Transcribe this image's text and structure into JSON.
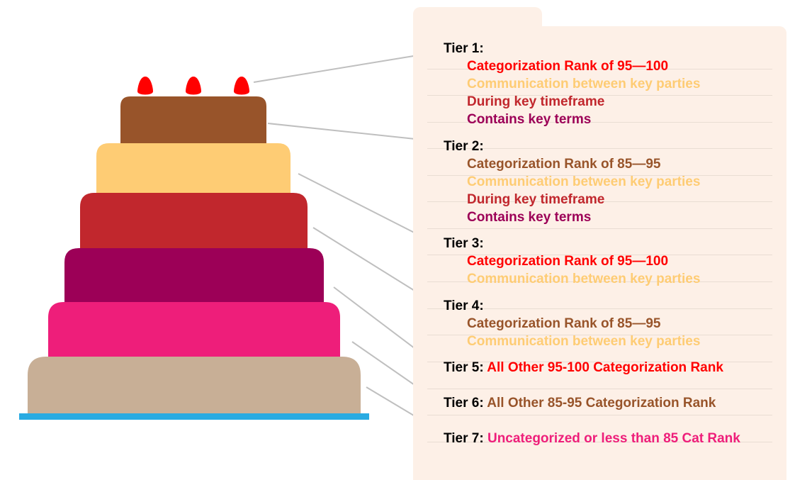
{
  "colors": {
    "candle": "#ff0000",
    "layer1": "#98542a",
    "layer2": "#fecc74",
    "layer3": "#c1272d",
    "layer4": "#9c0057",
    "layer5": "#ee1e7a",
    "layer6": "#c8af96",
    "base": "#29abe2",
    "connector": "#bfbfbf",
    "panel": "#fdf0e7"
  },
  "tiers": [
    {
      "label": "Tier 1:",
      "items": [
        {
          "text": "Categorization Rank of 95—100",
          "color": "#ff0000"
        },
        {
          "text": "Communication between key parties",
          "color": "#fecc74"
        },
        {
          "text": "During key timeframe",
          "color": "#c1272d"
        },
        {
          "text": "Contains key terms",
          "color": "#9c0057"
        }
      ]
    },
    {
      "label": "Tier 2:",
      "items": [
        {
          "text": "Categorization Rank of 85—95",
          "color": "#98542a"
        },
        {
          "text": "Communication between key parties",
          "color": "#fecc74"
        },
        {
          "text": "During key timeframe",
          "color": "#c1272d"
        },
        {
          "text": "Contains key terms",
          "color": "#9c0057"
        }
      ]
    },
    {
      "label": "Tier 3:",
      "items": [
        {
          "text": "Categorization Rank of 95—100",
          "color": "#ff0000"
        },
        {
          "text": "Communication between key parties",
          "color": "#fecc74"
        }
      ]
    },
    {
      "label": "Tier 4:",
      "items": [
        {
          "text": "Categorization Rank of 85—95",
          "color": "#98542a"
        },
        {
          "text": "Communication between key parties",
          "color": "#fecc74"
        }
      ]
    },
    {
      "label": "Tier 5:",
      "inline": "All Other 95-100 Categorization Rank",
      "color": "#ff0000"
    },
    {
      "label": "Tier 6:",
      "inline": " All Other 85-95 Categorization Rank",
      "color": "#98542a"
    },
    {
      "label": "Tier 7:",
      "inline": "Uncategorized or less than 85 Cat Rank",
      "color": "#ee1e7a"
    }
  ]
}
